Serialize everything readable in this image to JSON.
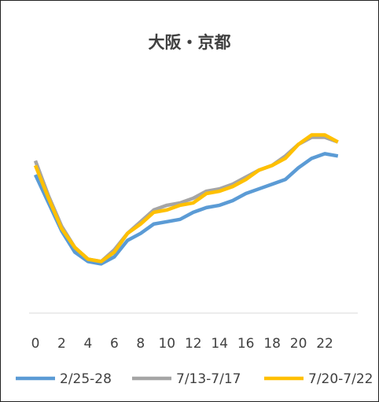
{
  "chart_data": {
    "type": "line",
    "title": "大阪・京都",
    "categories": [
      "0",
      null,
      "2",
      null,
      "4",
      null,
      "6",
      null,
      "8",
      null,
      "10",
      null,
      "12",
      null,
      "14",
      null,
      "16",
      null,
      "18",
      null,
      "20",
      null,
      "22",
      null
    ],
    "ylim": [
      0,
      100
    ],
    "legend": "bottom",
    "series": [
      {
        "name": "2/25-28",
        "color": "#5b9bd5",
        "values": [
          59,
          47,
          35,
          26,
          22,
          21,
          24,
          31,
          34,
          38,
          39,
          40,
          43,
          45,
          46,
          48,
          51,
          53,
          55,
          57,
          62,
          66,
          68,
          67
        ]
      },
      {
        "name": "7/13-7/17",
        "color": "#a5a5a5",
        "values": [
          65,
          50,
          37,
          28,
          23,
          22,
          27,
          34,
          39,
          44,
          46,
          47,
          49,
          52,
          53,
          55,
          58,
          61,
          63,
          67,
          72,
          75,
          75,
          73
        ]
      },
      {
        "name": "7/20-7/22",
        "color": "#ffc000",
        "values": [
          63,
          49,
          36,
          28,
          23,
          22,
          26,
          34,
          38,
          43,
          44,
          46,
          47,
          51,
          52,
          54,
          57,
          61,
          63,
          66,
          72,
          76,
          76,
          73
        ]
      }
    ]
  }
}
